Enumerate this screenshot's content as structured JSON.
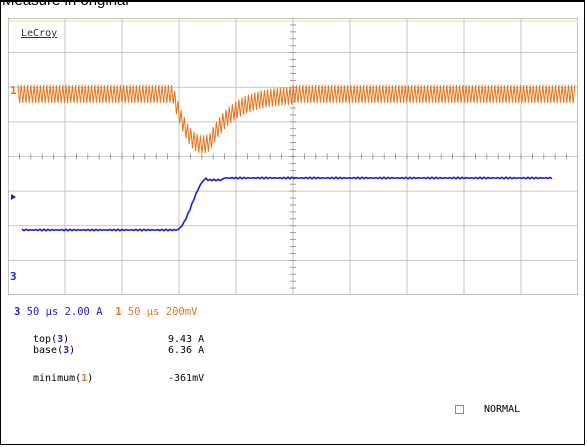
{
  "caption": "Measure in original",
  "brand": "LeCroy",
  "colors": {
    "ch1": "#e8741c",
    "ch3": "#1e1ecf",
    "grid": "#b8b8b8",
    "accent": "#e6dca0"
  },
  "markers": {
    "ch1": "1",
    "ch3": "3"
  },
  "scale_row": {
    "ch3_badge": "3",
    "ch3_time": "50 µs",
    "ch3_vdiv": "2.00 A",
    "ch1_badge": "1",
    "ch1_time": "50 µs",
    "ch1_vdiv": "200mV"
  },
  "measurements": [
    {
      "name": "top",
      "ch": "3",
      "value": "9.43 A"
    },
    {
      "name": "base",
      "ch": "3",
      "value": "6.36 A"
    },
    {
      "name": "minimum",
      "ch": "1",
      "value": "-361mV"
    }
  ],
  "trigger_mode": "NORMAL"
}
